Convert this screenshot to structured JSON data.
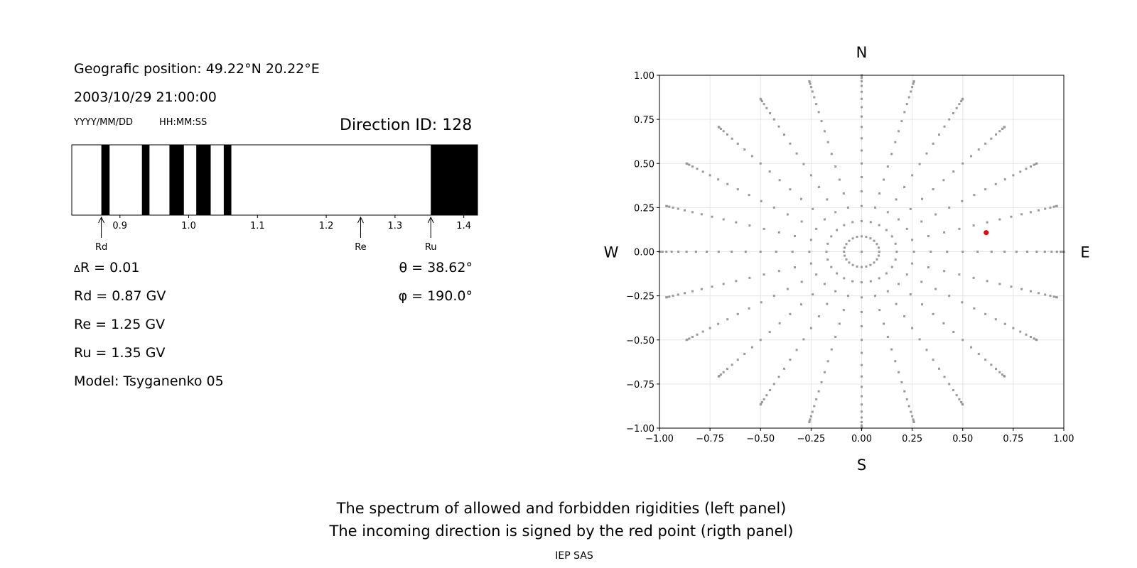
{
  "info": {
    "position": "Geografic position: 49.22°N 20.22°E",
    "datetime": "2003/10/29 21:00:00",
    "date_format": "YYYY/MM/DD",
    "time_format": "HH:MM:SS",
    "direction_id": "Direction ID: 128",
    "delta_r": "R = 0.01",
    "delta_symbol": "Δ",
    "rd": "Rd = 0.87 GV",
    "re": "Re = 1.25 GV",
    "ru": "Ru = 1.35 GV",
    "model": "Model: Tsyganenko 05",
    "theta": "θ = 38.62°",
    "phi": "φ = 190.0°"
  },
  "footer": {
    "line1": "The spectrum of allowed and forbidden rigidities (left panel)",
    "line2": "The incoming direction is signed by the red point (rigth panel)",
    "credit": "IEP SAS"
  },
  "colors": {
    "forbidden": "#000000",
    "allowed": "#ffffff",
    "grid_point": "#999999",
    "direction_point": "#e8000b",
    "grid_line": "#e6e6e6"
  },
  "chart_data": [
    {
      "type": "bar",
      "title": "",
      "xlim": [
        0.83,
        1.42
      ],
      "xticks": [
        0.9,
        1.0,
        1.1,
        1.2,
        1.3,
        1.4
      ],
      "xtick_labels": [
        "0.9",
        "1.0",
        "1.1",
        "1.2",
        "1.3",
        "1.4"
      ],
      "forbidden_intervals": [
        [
          0.873,
          0.885
        ],
        [
          0.932,
          0.943
        ],
        [
          0.972,
          0.993
        ],
        [
          1.011,
          1.032
        ],
        [
          1.051,
          1.062
        ],
        [
          1.352,
          1.42
        ]
      ],
      "markers": [
        {
          "label": "Rd",
          "value": 0.873
        },
        {
          "label": "Re",
          "value": 1.25
        },
        {
          "label": "Ru",
          "value": 1.352
        }
      ]
    },
    {
      "type": "scatter",
      "title": "",
      "xlim": [
        -1.0,
        1.0
      ],
      "ylim": [
        -1.0,
        1.0
      ],
      "ticks": [
        -1.0,
        -0.75,
        -0.5,
        -0.25,
        0.0,
        0.25,
        0.5,
        0.75,
        1.0
      ],
      "tick_labels_x": [
        "−1.00",
        "−0.75",
        "−0.50",
        "−0.25",
        "0.00",
        "0.25",
        "0.50",
        "0.75",
        "1.00"
      ],
      "tick_labels_y": [
        "−1.00",
        "−0.75",
        "−0.50",
        "−0.25",
        "0.00",
        "0.25",
        "0.50",
        "0.75",
        "1.00"
      ],
      "grid": true,
      "compass": {
        "north": "N",
        "south": "S",
        "west": "W",
        "east": "E"
      },
      "grid_directions": {
        "projection": "sin(zenith angle), azimuth",
        "zenith_deg_start": 0,
        "zenith_deg_end": 90,
        "zenith_deg_step": 5,
        "azimuth_deg_start": 0,
        "azimuth_deg_step": 15,
        "azimuth_count": 24,
        "include_center": true
      },
      "highlight": {
        "x": 0.616,
        "y": 0.108
      }
    }
  ]
}
